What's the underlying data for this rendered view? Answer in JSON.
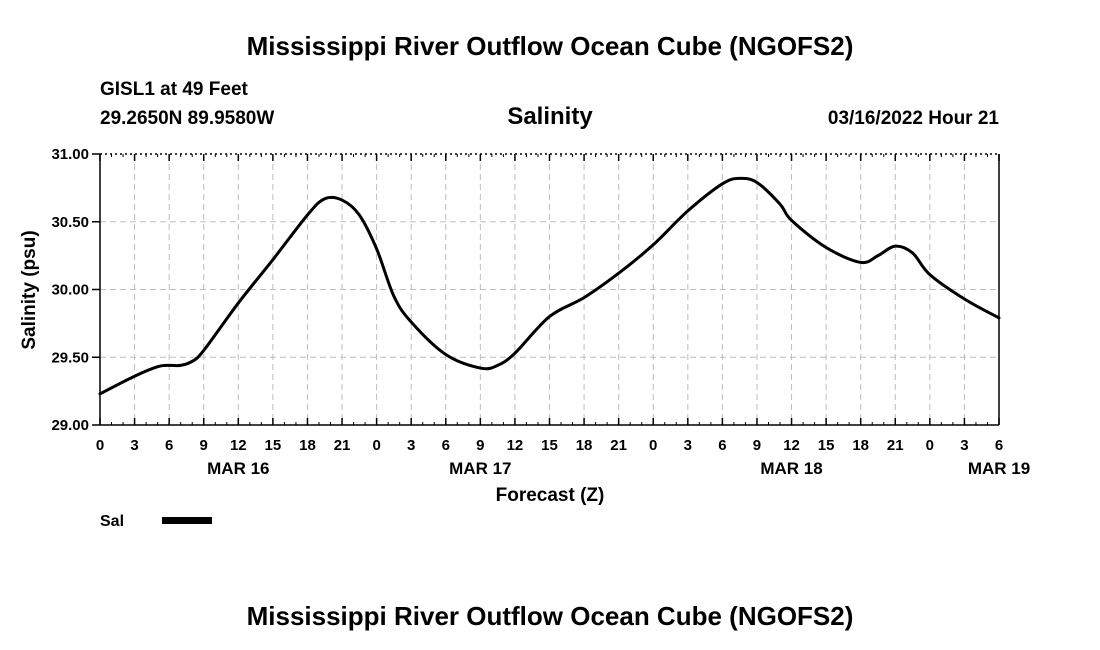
{
  "header": {
    "title": "Mississippi River Outflow Ocean Cube (NGOFS2)",
    "station": "GISL1 at 49 Feet",
    "coords": "29.2650N  89.9580W",
    "datetime": "03/16/2022 Hour 21"
  },
  "footer": {
    "title": "Mississippi River Outflow Ocean Cube (NGOFS2)"
  },
  "legend": {
    "label": "Sal",
    "color": "#000000"
  },
  "chart_data": {
    "type": "line",
    "title": "Salinity",
    "xlabel": "Forecast (Z)",
    "ylabel": "Salinity (psu)",
    "ylim": [
      29.0,
      31.0
    ],
    "xlim": [
      0,
      78
    ],
    "yticks": [
      "29.00",
      "29.50",
      "30.00",
      "30.50",
      "31.00"
    ],
    "ytick_values": [
      29.0,
      29.5,
      30.0,
      30.5,
      31.0
    ],
    "xticks": [
      "0",
      "3",
      "6",
      "9",
      "12",
      "15",
      "18",
      "21",
      "0",
      "3",
      "6",
      "9",
      "12",
      "15",
      "18",
      "21",
      "0",
      "3",
      "6",
      "9",
      "12",
      "15",
      "18",
      "21",
      "0",
      "3",
      "6"
    ],
    "day_labels": [
      {
        "label": "MAR 16",
        "hour": 12
      },
      {
        "label": "MAR 17",
        "hour": 33
      },
      {
        "label": "MAR 18",
        "hour": 60
      },
      {
        "label": "MAR 19",
        "hour": 78
      }
    ],
    "grid": true,
    "series": [
      {
        "name": "Sal",
        "color": "#000000",
        "x": [
          0,
          3,
          5,
          6,
          7,
          8,
          9,
          12,
          15,
          18,
          19.5,
          21,
          22.5,
          24,
          25.5,
          27,
          30,
          33,
          34.5,
          36,
          39,
          42,
          45,
          48,
          51,
          54,
          55.5,
          57,
          59,
          60,
          63,
          66,
          67.5,
          69,
          70.5,
          72,
          75,
          78
        ],
        "values": [
          29.23,
          29.36,
          29.43,
          29.44,
          29.44,
          29.47,
          29.55,
          29.9,
          30.22,
          30.55,
          30.67,
          30.66,
          30.55,
          30.3,
          29.95,
          29.76,
          29.52,
          29.42,
          29.44,
          29.53,
          29.8,
          29.94,
          30.12,
          30.33,
          30.58,
          30.78,
          30.82,
          30.79,
          30.63,
          30.51,
          30.31,
          30.2,
          30.25,
          30.32,
          30.27,
          30.11,
          29.93,
          29.79
        ]
      }
    ]
  }
}
